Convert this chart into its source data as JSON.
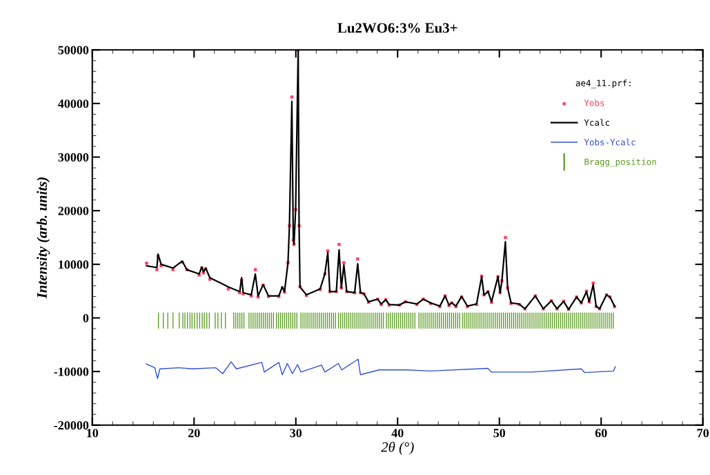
{
  "chart_data": {
    "type": "line",
    "title": "Lu2WO6:3% Eu3+",
    "xlabel": "2θ (°)",
    "ylabel": "Intensity (arb. units)",
    "legend_title": "ae4_11.prf:",
    "xlim": [
      10,
      70
    ],
    "xticks": [
      10,
      20,
      30,
      40,
      50,
      60,
      70
    ],
    "ylim": [
      -20000,
      50000
    ],
    "yticks": [
      -20000,
      -10000,
      0,
      10000,
      20000,
      30000,
      40000,
      50000
    ],
    "grid": false,
    "legend": "top right",
    "x": [
      15.34,
      16.35,
      16.46,
      16.76,
      17.93,
      18.84,
      19.29,
      20.5,
      20.76,
      20.92,
      21.14,
      21.55,
      23.36,
      24.49,
      24.67,
      24.83,
      25.62,
      26.02,
      26.29,
      26.79,
      27.31,
      28.33,
      28.67,
      28.89,
      29.23,
      29.37,
      29.61,
      29.75,
      29.82,
      29.98,
      30.23,
      30.32,
      30.41,
      31.04,
      32.39,
      32.85,
      33.14,
      33.34,
      33.98,
      34.25,
      34.47,
      34.72,
      35.0,
      35.78,
      36.08,
      36.35,
      36.69,
      37.14,
      38.05,
      38.39,
      38.84,
      39.17,
      40.19,
      40.76,
      41.89,
      42.52,
      43.24,
      44.15,
      44.67,
      45.05,
      45.32,
      45.73,
      46.29,
      46.86,
      47.76,
      48.26,
      48.49,
      48.89,
      49.23,
      49.86,
      50.07,
      50.25,
      50.59,
      50.81,
      51.15,
      51.95,
      52.51,
      53.53,
      54.32,
      55.11,
      55.67,
      56.31,
      56.8,
      57.59,
      58.05,
      58.56,
      58.83,
      59.22,
      59.51,
      59.85,
      60.53,
      60.87,
      61.32
    ],
    "series": [
      {
        "name": "Yobs",
        "type": "scatter",
        "marker": "square",
        "color": "#ff4060",
        "values": [
          10200,
          9000,
          11500,
          9700,
          9000,
          10400,
          9000,
          8000,
          9300,
          8400,
          9100,
          7200,
          5400,
          4700,
          7000,
          4500,
          4100,
          9000,
          3900,
          6100,
          4000,
          4000,
          5600,
          4800,
          10300,
          17200,
          41200,
          14500,
          13700,
          20200,
          50000,
          17200,
          5800,
          4200,
          5300,
          8200,
          12500,
          4900,
          4900,
          13700,
          5600,
          10300,
          4900,
          4700,
          11000,
          4700,
          4500,
          2900,
          3500,
          2500,
          3400,
          2400,
          2400,
          3000,
          2500,
          3500,
          2700,
          2100,
          4100,
          2300,
          2800,
          2100,
          3900,
          2100,
          2500,
          7800,
          4300,
          4900,
          2900,
          7700,
          4700,
          6900,
          15000,
          5600,
          2700,
          2500,
          1700,
          4100,
          1700,
          3200,
          1700,
          3100,
          1600,
          3900,
          2800,
          5000,
          3000,
          6500,
          2100,
          1700,
          4300,
          3900,
          2100
        ]
      },
      {
        "name": "Ycalc",
        "color": "#000000",
        "values": [
          9700,
          9400,
          11900,
          10000,
          9300,
          10600,
          9000,
          8200,
          9500,
          8600,
          9300,
          7500,
          5800,
          4900,
          7500,
          4700,
          4300,
          8200,
          4100,
          6200,
          4100,
          4100,
          5800,
          4900,
          10300,
          17200,
          40400,
          14600,
          13800,
          20200,
          50000,
          17200,
          5800,
          4300,
          5400,
          8200,
          12200,
          4900,
          4900,
          12700,
          5600,
          9900,
          4900,
          4700,
          10100,
          4700,
          4500,
          3000,
          3500,
          2600,
          3400,
          2500,
          2400,
          3000,
          2600,
          3500,
          2800,
          2200,
          4100,
          2400,
          2800,
          2200,
          4000,
          2200,
          2600,
          7700,
          4300,
          4900,
          3000,
          7700,
          4700,
          6900,
          14200,
          5600,
          2800,
          2600,
          1700,
          4100,
          1700,
          3200,
          1700,
          3100,
          1600,
          3900,
          2800,
          4900,
          3000,
          6200,
          2200,
          1700,
          4300,
          3900,
          2200
        ]
      },
      {
        "name": "Yobs-Ycalc",
        "color": "#3050d0",
        "x": [
          15.29,
          16.14,
          16.41,
          16.64,
          18.47,
          19.82,
          22.14,
          22.81,
          23.65,
          24.16,
          26.66,
          26.9,
          28.33,
          28.67,
          29.17,
          29.66,
          30.17,
          30.5,
          32.51,
          32.86,
          34.18,
          34.51,
          36.12,
          36.35,
          38.18,
          40.85,
          43.2,
          48.87,
          49.21,
          53.21,
          58.05,
          58.39,
          61.23,
          61.39
        ],
        "values": [
          -8600,
          -9300,
          -11300,
          -9500,
          -9300,
          -9500,
          -9300,
          -10400,
          -8200,
          -9500,
          -8300,
          -10100,
          -8300,
          -10600,
          -8500,
          -10400,
          -8700,
          -10100,
          -8800,
          -10100,
          -8500,
          -9700,
          -7700,
          -10600,
          -9700,
          -9700,
          -9900,
          -9400,
          -10100,
          -10100,
          -9500,
          -10200,
          -9900,
          -9100
        ]
      },
      {
        "name": "Bragg_position",
        "type": "bar",
        "color": "#5a9a20",
        "x": [
          16.5,
          16.98,
          17.42,
          17.93,
          18.54,
          18.9,
          19.1,
          19.35,
          19.6,
          19.8,
          20.05,
          20.3,
          20.55,
          20.8,
          21.0,
          21.25,
          21.5,
          22.07,
          22.34,
          22.68,
          23.08,
          23.9,
          24.1,
          24.3,
          24.5,
          24.7,
          24.9,
          25.4,
          25.6,
          25.8,
          26.0,
          26.2,
          26.4,
          26.6,
          26.8,
          27.0,
          27.2,
          27.4,
          27.6,
          27.8,
          28.1,
          28.3,
          28.5,
          28.7,
          28.9,
          29.1,
          29.3,
          29.5,
          29.7,
          29.9,
          30.1,
          30.5,
          30.7,
          30.9,
          31.1,
          31.3,
          31.5,
          31.7,
          31.9,
          32.1,
          32.3,
          32.5,
          32.7,
          32.9,
          33.1,
          33.3,
          33.5,
          33.7,
          33.9,
          34.2,
          34.4,
          34.6,
          34.8,
          35.0,
          35.2,
          35.4,
          35.6,
          35.8,
          36.0,
          36.2,
          36.4,
          36.6,
          36.8,
          37.0,
          37.2,
          37.4,
          37.6,
          37.8,
          38.0,
          38.2,
          38.4,
          38.6,
          38.9,
          39.1,
          39.3,
          39.5,
          39.7,
          39.9,
          40.1,
          40.3,
          40.5,
          40.7,
          40.9,
          41.1,
          41.3,
          41.5,
          41.7,
          42.1,
          42.3,
          42.5,
          42.7,
          42.9,
          43.1,
          43.3,
          43.5,
          43.7,
          43.9,
          44.1,
          44.3,
          44.5,
          44.7,
          44.9,
          45.1,
          45.3,
          45.5,
          45.7,
          45.9,
          46.1,
          46.4,
          46.6,
          46.8,
          47.0,
          47.2,
          47.4,
          47.6,
          47.8,
          48.0,
          48.2,
          48.4,
          48.6,
          48.8,
          49.0,
          49.2,
          49.4,
          49.6,
          49.8,
          50.0,
          50.2,
          50.4,
          50.6,
          50.8,
          51.0,
          51.2,
          51.4,
          51.6,
          51.8,
          52.0,
          52.2,
          52.4,
          52.6,
          52.8,
          53.0,
          53.2,
          53.4,
          53.6,
          53.8,
          54.0,
          54.2,
          54.4,
          54.6,
          54.8,
          55.0,
          55.2,
          55.4,
          55.6,
          55.8,
          56.0,
          56.2,
          56.4,
          56.6,
          56.8,
          57.0,
          57.2,
          57.4,
          57.6,
          57.8,
          58.0,
          58.2,
          58.4,
          58.6,
          58.8,
          59.0,
          59.2,
          59.4,
          59.6,
          59.8,
          60.0,
          60.2,
          60.4,
          60.6,
          60.8,
          61.0,
          61.2
        ],
        "values": [
          3000,
          3000,
          3000,
          3000,
          3000,
          3000,
          3000,
          3000,
          3000,
          3000,
          3000,
          3000,
          3000,
          3000,
          3000,
          3000,
          3000,
          3000,
          3000,
          3000,
          3000,
          3000,
          3000,
          3000,
          3000,
          3000,
          3000,
          3000,
          3000,
          3000,
          3000,
          3000,
          3000,
          3000,
          3000,
          3000,
          3000,
          3000,
          3000,
          3000,
          3000,
          3000,
          3000,
          3000,
          3000,
          3000,
          3000,
          3000,
          3000,
          3000,
          3000,
          3000,
          3000,
          3000,
          3000,
          3000,
          3000,
          3000,
          3000,
          3000,
          3000,
          3000,
          3000,
          3000,
          3000,
          3000,
          3000,
          3000,
          3000,
          3000,
          3000,
          3000,
          3000,
          3000,
          3000,
          3000,
          3000,
          3000,
          3000,
          3000,
          3000,
          3000,
          3000,
          3000,
          3000,
          3000,
          3000,
          3000,
          3000,
          3000,
          3000,
          3000,
          3000,
          3000,
          3000,
          3000,
          3000,
          3000,
          3000,
          3000,
          3000,
          3000,
          3000,
          3000,
          3000,
          3000,
          3000,
          3000,
          3000,
          3000,
          3000,
          3000,
          3000,
          3000,
          3000,
          3000,
          3000,
          3000,
          3000,
          3000,
          3000,
          3000,
          3000,
          3000,
          3000,
          3000,
          3000,
          3000,
          3000,
          3000,
          3000,
          3000,
          3000,
          3000,
          3000,
          3000,
          3000,
          3000,
          3000,
          3000,
          3000,
          3000,
          3000,
          3000,
          3000,
          3000,
          3000,
          3000,
          3000,
          3000,
          3000,
          3000,
          3000,
          3000,
          3000,
          3000,
          3000,
          3000,
          3000,
          3000,
          3000,
          3000,
          3000,
          3000,
          3000,
          3000,
          3000,
          3000,
          3000,
          3000,
          3000,
          3000,
          3000,
          3000,
          3000,
          3000,
          3000,
          3000,
          3000,
          3000,
          3000,
          3000,
          3000,
          3000,
          3000,
          3000,
          3000,
          3000,
          3000,
          3000,
          3000,
          3000,
          3000,
          3000,
          3000,
          3000,
          3000,
          3000,
          3000,
          3000,
          3000,
          3000,
          3000
        ],
        "base": [
          -2000,
          -2000,
          -2000,
          -2000,
          -2000,
          -2000,
          -2000,
          -2000,
          -2000,
          -2000,
          -2000,
          -2000,
          -2000,
          -2000,
          -2000,
          -2000,
          -2000,
          -2000,
          -2000,
          -2000,
          -2000,
          -2000,
          -2000,
          -2000,
          -2000,
          -2000,
          -2000,
          -2000,
          -2000,
          -2000,
          -2000,
          -2000,
          -2000,
          -2000,
          -2000,
          -2000,
          -2000,
          -2000,
          -2000,
          -2000,
          -2000,
          -2000,
          -2000,
          -2000,
          -2000,
          -2000,
          -2000,
          -2000,
          -2000,
          -2000,
          -2000,
          -2000,
          -2000,
          -2000,
          -2000,
          -2000,
          -2000,
          -2000,
          -2000,
          -2000,
          -2000,
          -2000,
          -2000,
          -2000,
          -2000,
          -2000,
          -2000,
          -2000,
          -2000,
          -2000,
          -2000,
          -2000,
          -2000,
          -2000,
          -2000,
          -2000,
          -2000,
          -2000,
          -2000,
          -2000,
          -2000,
          -2000,
          -2000,
          -2000,
          -2000,
          -2000,
          -2000,
          -2000,
          -2000,
          -2000,
          -2000,
          -2000,
          -2000,
          -2000,
          -2000,
          -2000,
          -2000,
          -2000,
          -2000,
          -2000,
          -2000,
          -2000,
          -2000,
          -2000,
          -2000,
          -2000,
          -2000,
          -2000,
          -2000,
          -2000,
          -2000,
          -2000,
          -2000,
          -2000,
          -2000,
          -2000,
          -2000,
          -2000,
          -2000,
          -2000,
          -2000,
          -2000,
          -2000,
          -2000,
          -2000,
          -2000,
          -2000,
          -2000,
          -2000,
          -2000,
          -2000,
          -2000,
          -2000,
          -2000,
          -2000,
          -2000,
          -2000,
          -2000,
          -2000,
          -2000,
          -2000,
          -2000,
          -2000,
          -2000,
          -2000,
          -2000,
          -2000,
          -2000,
          -2000,
          -2000,
          -2000,
          -2000,
          -2000,
          -2000,
          -2000,
          -2000,
          -2000,
          -2000,
          -2000,
          -2000,
          -2000,
          -2000,
          -2000,
          -2000,
          -2000,
          -2000,
          -2000,
          -2000,
          -2000,
          -2000,
          -2000,
          -2000,
          -2000,
          -2000,
          -2000,
          -2000,
          -2000,
          -2000,
          -2000,
          -2000,
          -2000,
          -2000,
          -2000,
          -2000,
          -2000,
          -2000,
          -2000,
          -2000,
          -2000,
          -2000,
          -2000,
          -2000,
          -2000,
          -2000,
          -2000,
          -2000,
          -2000,
          -2000,
          -2000,
          -2000,
          -2000,
          -2000,
          -2000
        ]
      }
    ]
  }
}
